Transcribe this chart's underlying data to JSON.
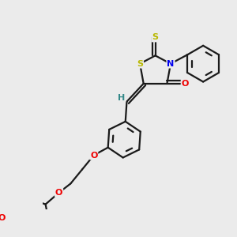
{
  "background_color": "#ebebeb",
  "bond_color": "#1a1a1a",
  "atom_colors": {
    "S": "#b8b800",
    "N": "#0000ee",
    "O": "#ee0000",
    "H": "#338888",
    "C": "#1a1a1a"
  },
  "figsize": [
    3.0,
    3.0
  ],
  "dpi": 100
}
